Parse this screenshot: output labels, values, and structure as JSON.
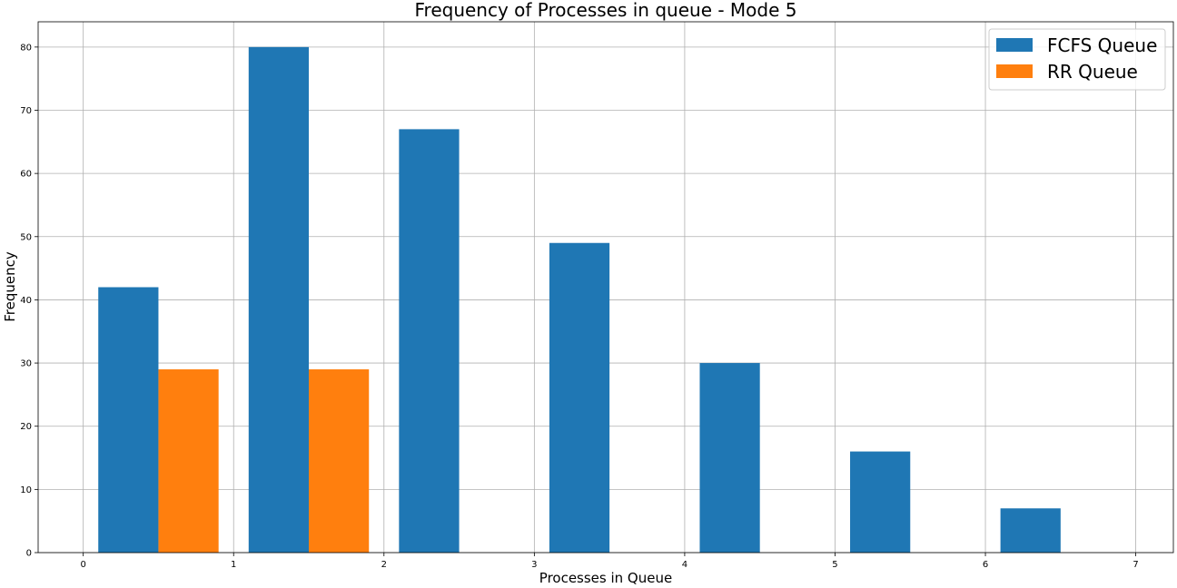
{
  "chart_data": {
    "type": "bar",
    "title": "Frequency of Processes in queue - Mode 5",
    "xlabel": "Processes in Queue",
    "ylabel": "Frequency",
    "xlim": [
      -0.3,
      7.25
    ],
    "ylim": [
      0,
      84
    ],
    "xticks": [
      0,
      1,
      2,
      3,
      4,
      5,
      6,
      7
    ],
    "yticks": [
      0,
      10,
      20,
      30,
      40,
      50,
      60,
      70,
      80
    ],
    "grid": true,
    "legend_position": "top-right",
    "bin_edges": [
      0.1,
      0.9,
      1.1,
      1.9,
      2.1,
      2.9,
      3.1,
      3.9,
      4.1,
      4.9,
      5.1,
      5.9,
      6.1,
      6.9
    ],
    "series": [
      {
        "name": "FCFS Queue",
        "color": "#1f77b4",
        "values": [
          42,
          80,
          67,
          49,
          30,
          16,
          7
        ]
      },
      {
        "name": "RR Queue",
        "color": "#ff7f0e",
        "values": [
          29,
          29,
          0,
          0,
          0,
          0,
          0
        ]
      }
    ]
  }
}
